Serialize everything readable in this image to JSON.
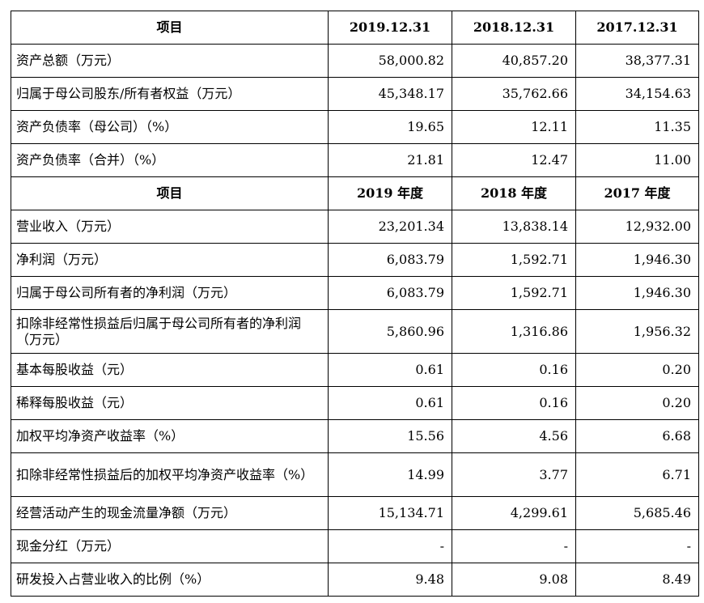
{
  "table": {
    "sections": [
      {
        "header": [
          "项目",
          "2019.12.31",
          "2018.12.31",
          "2017.12.31"
        ],
        "rows": [
          {
            "label": "资产总额（万元）",
            "values": [
              "58,000.82",
              "40,857.20",
              "38,377.31"
            ]
          },
          {
            "label": "归属于母公司股东/所有者权益（万元）",
            "values": [
              "45,348.17",
              "35,762.66",
              "34,154.63"
            ]
          },
          {
            "label": "资产负债率（母公司）（%）",
            "values": [
              "19.65",
              "12.11",
              "11.35"
            ]
          },
          {
            "label": "资产负债率（合并）（%）",
            "values": [
              "21.81",
              "12.47",
              "11.00"
            ]
          }
        ]
      },
      {
        "header": [
          "项目",
          "2019 年度",
          "2018 年度",
          "2017 年度"
        ],
        "rows": [
          {
            "label": "营业收入（万元）",
            "values": [
              "23,201.34",
              "13,838.14",
              "12,932.00"
            ]
          },
          {
            "label": "净利润（万元）",
            "values": [
              "6,083.79",
              "1,592.71",
              "1,946.30"
            ]
          },
          {
            "label": "归属于母公司所有者的净利润（万元）",
            "values": [
              "6,083.79",
              "1,592.71",
              "1,946.30"
            ]
          },
          {
            "label": "扣除非经常性损益后归属于母公司所有者的净利润（万元）",
            "values": [
              "5,860.96",
              "1,316.86",
              "1,956.32"
            ]
          },
          {
            "label": "基本每股收益（元）",
            "values": [
              "0.61",
              "0.16",
              "0.20"
            ]
          },
          {
            "label": "稀释每股收益（元）",
            "values": [
              "0.61",
              "0.16",
              "0.20"
            ]
          },
          {
            "label": "加权平均净资产收益率（%）",
            "values": [
              "15.56",
              "4.56",
              "6.68"
            ]
          },
          {
            "label": "扣除非经常性损益后的加权平均净资产收益率（%）",
            "values": [
              "14.99",
              "3.77",
              "6.71"
            ]
          },
          {
            "label": "经营活动产生的现金流量净额（万元）",
            "values": [
              "15,134.71",
              "4,299.61",
              "5,685.46"
            ]
          },
          {
            "label": "现金分红（万元）",
            "values": [
              "-",
              "-",
              "-"
            ]
          },
          {
            "label": "研发投入占营业收入的比例（%）",
            "values": [
              "9.48",
              "9.08",
              "8.49"
            ]
          }
        ]
      }
    ]
  }
}
